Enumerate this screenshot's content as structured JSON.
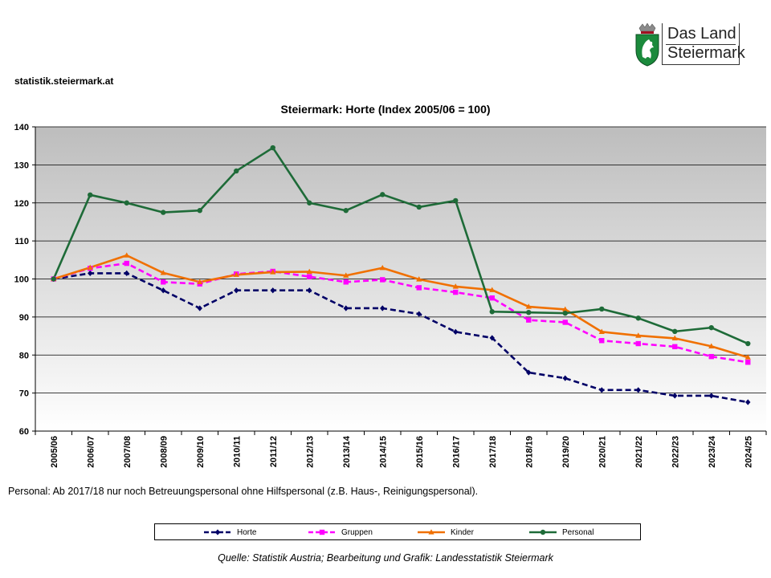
{
  "header": {
    "site_url": "statistik.steiermark.at"
  },
  "logo": {
    "line1": "Das Land",
    "line2": "Steiermark"
  },
  "footnote": "Personal: Ab 2017/18  nur noch Betreuungspersonal ohne Hilfspersonal (z.B. Haus-, Reinigungspersonal).",
  "source": "Quelle: Statistik Austria; Bearbeitung und Grafik: Landesstatistik Steiermark",
  "chart_data": {
    "type": "line",
    "title": "Steiermark: Horte (Index 2005/06 = 100)",
    "xlabel": "",
    "ylabel": "",
    "ylim": [
      60,
      140
    ],
    "yticks": [
      60,
      70,
      80,
      90,
      100,
      110,
      120,
      130,
      140
    ],
    "grid": true,
    "legend_position": "bottom",
    "categories": [
      "2005/06",
      "2006/07",
      "2007/08",
      "2008/09",
      "2009/10",
      "2010/11",
      "2011/12",
      "2012/13",
      "2013/14",
      "2014/15",
      "2015/16",
      "2016/17",
      "2017/18",
      "2018/19",
      "2019/20",
      "2020/21",
      "2021/22",
      "2022/23",
      "2023/24",
      "2024/25"
    ],
    "series": [
      {
        "name": "Horte",
        "color": "#000066",
        "dash": "dash",
        "marker": "diamond",
        "values": [
          100,
          101.5,
          101.5,
          97,
          92.3,
          97,
          97,
          97,
          92.3,
          92.3,
          90.8,
          86.1,
          84.5,
          75.4,
          73.9,
          70.8,
          70.8,
          69.3,
          69.3,
          67.6
        ]
      },
      {
        "name": "Gruppen",
        "color": "#FF00FF",
        "dash": "dash",
        "marker": "square",
        "values": [
          100,
          102.8,
          104.1,
          99.2,
          98.7,
          101.3,
          102,
          100.6,
          99.2,
          99.8,
          97.7,
          96.5,
          95,
          89.2,
          88.6,
          83.8,
          83,
          82.2,
          79.6,
          78.1
        ]
      },
      {
        "name": "Kinder",
        "color": "#F07000",
        "dash": "solid",
        "marker": "triangle",
        "values": [
          100,
          103,
          106.2,
          101.6,
          99.2,
          101.1,
          101.8,
          101.9,
          100.9,
          102.9,
          99.9,
          98,
          97.1,
          92.7,
          92,
          86.1,
          85.1,
          84.4,
          82.3,
          79.4
        ]
      },
      {
        "name": "Personal",
        "color": "#1E6B38",
        "dash": "solid",
        "marker": "circle",
        "values": [
          100,
          122.1,
          120,
          117.5,
          118,
          128.4,
          134.5,
          120,
          118,
          122.2,
          118.9,
          120.6,
          91.4,
          91.2,
          91,
          92.1,
          89.7,
          86.2,
          87.2,
          83
        ]
      }
    ]
  }
}
